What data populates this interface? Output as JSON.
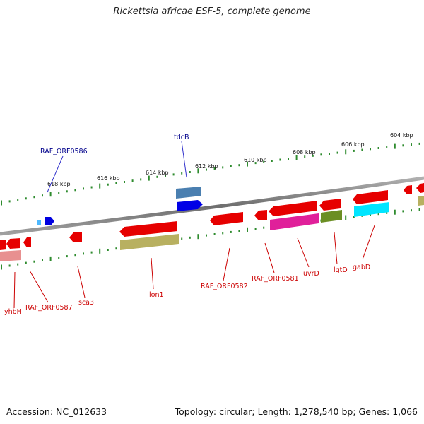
{
  "title": "Rickettsia africae ESF-5, complete genome",
  "footer": {
    "accession": "Accession: NC_012633",
    "stats": "Topology: circular; Length: 1,278,540 bp; Genes: 1,066"
  },
  "colors": {
    "backbone": "#808080",
    "tick": "#2e8b2e",
    "label_forward": "#00008b",
    "label_reverse": "#cc0000",
    "leader_forward": "#3333cc",
    "leader_reverse": "#cc0000"
  },
  "scale_labels": [
    "618 kbp",
    "616 kbp",
    "614 kbp",
    "612 kbp",
    "610 kbp",
    "608 kbp",
    "606 kbp",
    "604 kbp"
  ],
  "labels_forward": [
    "RAF_ORF0586",
    "tdcB"
  ],
  "labels_reverse": [
    "yhbH",
    "RAF_ORF0587",
    "sca3",
    "lon1",
    "RAF_ORF0582",
    "RAF_ORF0581",
    "uvrD",
    "lgtD",
    "gabD"
  ]
}
